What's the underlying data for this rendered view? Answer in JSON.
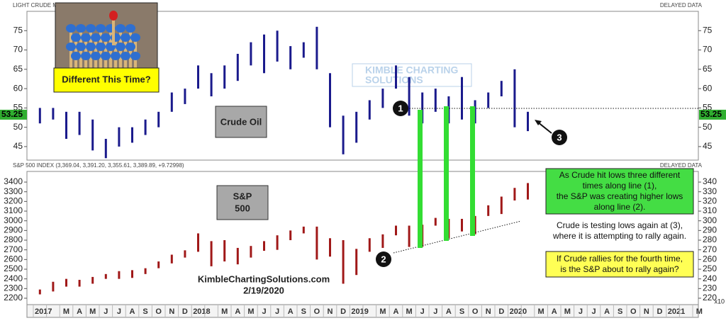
{
  "header": {
    "top_left": "LIGHT CRUDE MA",
    "top_right": "DELAYED DATA",
    "bottom_left": "S&P 500 INDEX (3,369.04, 3,391.20, 3,355.61, 3,389.89, +9.72998)",
    "bottom_right": "DELAYED DATA"
  },
  "inset": {
    "caption": "Different This Time?"
  },
  "watermark": [
    "KIMBLE CHARTING",
    "SOLUTIONS"
  ],
  "annotations": {
    "markers": [
      "1",
      "2",
      "3"
    ],
    "site": "KimbleChartingSolutions.com",
    "date": "2/19/2020",
    "green_box": [
      "As Crude hit lows three different",
      "times along line (1),",
      "the S&P was creating higher lows",
      "along line (2)."
    ],
    "white_box": [
      "Crude is testing lows again at (3),",
      "where it is attempting to rally again."
    ],
    "yellow_box": [
      "If Crude rallies for the fourth time,",
      "is the S&P about to rally again?"
    ]
  },
  "chart_data": [
    {
      "type": "bar",
      "title": [
        "Crude Oil"
      ],
      "color": "#1a1a8c",
      "last_value": 53.25,
      "ylim": [
        41.5,
        80
      ],
      "yticks": [
        45,
        50,
        55,
        60,
        65,
        70,
        75
      ],
      "high": [
        55,
        55,
        54,
        54,
        52,
        47,
        50,
        50,
        52,
        54,
        59,
        60,
        66,
        64,
        66,
        69,
        72,
        74,
        75,
        71,
        72,
        76,
        64,
        53,
        54,
        57,
        60,
        66,
        63,
        59,
        60,
        58,
        63,
        57,
        59,
        62,
        65,
        54,
        null,
        null,
        null,
        null,
        null,
        null,
        null,
        null,
        null,
        null,
        null,
        null,
        null
      ],
      "low": [
        51,
        52,
        47,
        48,
        44,
        42,
        45,
        46,
        48,
        50,
        54,
        56,
        60,
        58,
        60,
        62,
        66,
        64,
        67,
        65,
        68,
        65,
        50,
        43,
        46,
        52,
        55,
        60,
        53,
        51,
        54,
        51,
        52,
        51,
        55,
        58,
        50,
        49,
        null,
        null,
        null,
        null,
        null,
        null,
        null,
        null,
        null,
        null,
        null,
        null,
        null
      ]
    },
    {
      "type": "bar",
      "title": [
        "S&P",
        "500"
      ],
      "color": "#a01818",
      "y2_unit_label": "x10",
      "ylim": [
        2134,
        3510
      ],
      "yticks": [
        2200,
        2300,
        2400,
        2500,
        2600,
        2700,
        2800,
        2900,
        3000,
        3100,
        3200,
        3300,
        3400
      ],
      "y2lim": [
        213.4,
        351
      ],
      "y2ticks": [
        220,
        230,
        240,
        250,
        260,
        270,
        280,
        290,
        300,
        310,
        320,
        330,
        340
      ],
      "categories": [
        "2017",
        null,
        "M",
        "A",
        "M",
        "J",
        "J",
        "A",
        "S",
        "O",
        "N",
        "D",
        "2018",
        null,
        "M",
        "A",
        "M",
        "J",
        "J",
        "A",
        "S",
        "O",
        "N",
        "D",
        "2019",
        null,
        "M",
        "A",
        "M",
        "J",
        "J",
        "A",
        "S",
        "O",
        "N",
        "D",
        "2020",
        null,
        "M",
        "A",
        "M",
        "J",
        "J",
        "A",
        "S",
        "O",
        "N",
        "D",
        "2021",
        null,
        "M"
      ],
      "high": [
        2290,
        2370,
        2400,
        2390,
        2420,
        2450,
        2480,
        2490,
        2510,
        2580,
        2650,
        2695,
        2870,
        2790,
        2800,
        2720,
        2740,
        2790,
        2850,
        2900,
        2940,
        2940,
        2820,
        2800,
        2710,
        2820,
        2860,
        2950,
        2950,
        2960,
        3030,
        3020,
        3020,
        3050,
        3160,
        3250,
        3340,
        3390,
        null,
        null,
        null,
        null,
        null,
        null,
        null,
        null,
        null,
        null,
        null,
        null,
        null
      ],
      "low": [
        2240,
        2270,
        2320,
        2320,
        2350,
        2400,
        2400,
        2410,
        2450,
        2510,
        2560,
        2620,
        2680,
        2530,
        2580,
        2550,
        2620,
        2690,
        2700,
        2800,
        2870,
        2600,
        2630,
        2350,
        2440,
        2680,
        2720,
        2850,
        2730,
        2730,
        2950,
        2820,
        2890,
        2860,
        3050,
        3070,
        3210,
        3220,
        null,
        null,
        null,
        null,
        null,
        null,
        null,
        null,
        null,
        null,
        null,
        null,
        null
      ]
    }
  ]
}
